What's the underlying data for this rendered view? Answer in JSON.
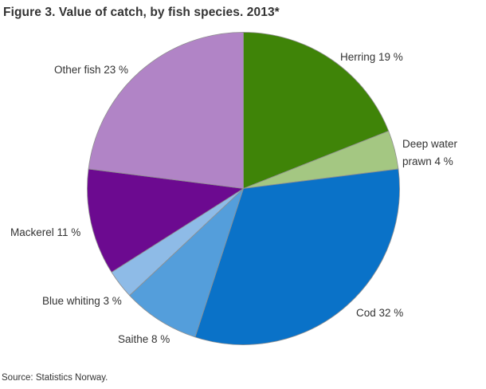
{
  "title": "Figure 3. Value of catch, by fish species. 2013*",
  "source": "Source: Statistics Norway.",
  "colors": {
    "text": "#333333",
    "background": "#ffffff",
    "slice_border": "#8f8f8f"
  },
  "chart_data": {
    "type": "pie",
    "title": "Figure 3. Value of catch, by fish species. 2013*",
    "unit": "%",
    "direction": "clockwise",
    "start_angle_deg": 0,
    "legend": "none",
    "labels_position": "outside",
    "slices": [
      {
        "name": "Herring",
        "value": 19,
        "label": "Herring 19 %",
        "color": "#3f8408"
      },
      {
        "name": "Deep water prawn",
        "value": 4,
        "label": "Deep water prawn 4 %",
        "color": "#a4c782"
      },
      {
        "name": "Cod",
        "value": 32,
        "label": "Cod 32 %",
        "color": "#0a72c8"
      },
      {
        "name": "Saithe",
        "value": 8,
        "label": "Saithe 8 %",
        "color": "#549edb"
      },
      {
        "name": "Blue whiting",
        "value": 3,
        "label": "Blue whiting 3 %",
        "color": "#8ebbe7"
      },
      {
        "name": "Mackerel",
        "value": 11,
        "label": "Mackerel 11 %",
        "color": "#6c0a90"
      },
      {
        "name": "Other fish",
        "value": 23,
        "label": "Other fish 23 %",
        "color": "#b184c6"
      }
    ]
  }
}
